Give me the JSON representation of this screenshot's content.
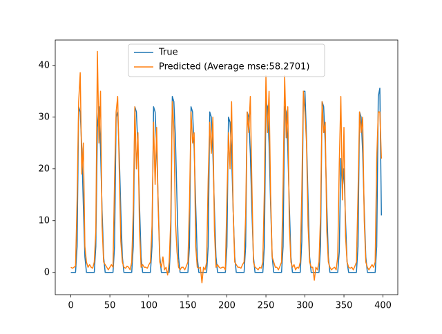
{
  "chart_data": {
    "type": "line",
    "x": [
      0,
      2,
      4,
      6,
      8,
      10,
      12,
      14,
      16,
      18,
      20,
      22,
      24,
      26,
      28,
      30,
      32,
      34,
      36,
      38,
      40,
      42,
      44,
      46,
      48,
      50,
      52,
      54,
      56,
      58,
      60,
      62,
      64,
      66,
      68,
      70,
      72,
      74,
      76,
      78,
      80,
      82,
      84,
      86,
      88,
      90,
      92,
      94,
      96,
      98,
      100,
      102,
      104,
      106,
      108,
      110,
      112,
      114,
      116,
      118,
      120,
      122,
      124,
      126,
      128,
      130,
      132,
      134,
      136,
      138,
      140,
      142,
      144,
      146,
      148,
      150,
      152,
      154,
      156,
      158,
      160,
      162,
      164,
      166,
      168,
      170,
      172,
      174,
      176,
      178,
      180,
      182,
      184,
      186,
      188,
      190,
      192,
      194,
      196,
      198,
      200,
      202,
      204,
      206,
      208,
      210,
      212,
      214,
      216,
      218,
      220,
      222,
      224,
      226,
      228,
      230,
      232,
      234,
      236,
      238,
      240,
      242,
      244,
      246,
      248,
      250,
      252,
      254,
      256,
      258,
      260,
      262,
      264,
      266,
      268,
      270,
      272,
      274,
      276,
      278,
      280,
      282,
      284,
      286,
      288,
      290,
      292,
      294,
      296,
      298,
      300,
      302,
      304,
      306,
      308,
      310,
      312,
      314,
      316,
      318,
      320,
      322,
      324,
      326,
      328,
      330,
      332,
      334,
      336,
      338,
      340,
      342,
      344,
      346,
      348,
      350,
      352,
      354,
      356,
      358,
      360,
      362,
      364,
      366,
      368,
      370,
      372,
      374,
      376,
      378,
      380,
      382,
      384,
      386,
      388,
      390,
      392,
      394,
      396,
      398
    ],
    "series": [
      {
        "name": "True",
        "color": "#1f77b4",
        "values": [
          0,
          0,
          0,
          0,
          5,
          32,
          31,
          24,
          13,
          3,
          0,
          0,
          0,
          0,
          0,
          0,
          5,
          28,
          32,
          24,
          12,
          3,
          0,
          0,
          0,
          0,
          0,
          0,
          5,
          30,
          31,
          23,
          12,
          3,
          0,
          0,
          0,
          0,
          0,
          0,
          5,
          32,
          31,
          24,
          13,
          3,
          0,
          0,
          0,
          0,
          0,
          0,
          5,
          32,
          31,
          24,
          13,
          3,
          0,
          0,
          0,
          0,
          0,
          0,
          6,
          34,
          33,
          26,
          14,
          3,
          0,
          0,
          0,
          0,
          0,
          0,
          5,
          32,
          31,
          24,
          13,
          3,
          0,
          0,
          0,
          0,
          0,
          0,
          5,
          31,
          30,
          23,
          12,
          3,
          0,
          0,
          0,
          0,
          0,
          0,
          5,
          30,
          29,
          23,
          12,
          3,
          0,
          0,
          0,
          0,
          0,
          0,
          5,
          31,
          30,
          23,
          12,
          3,
          0,
          0,
          0,
          0,
          0,
          0,
          5,
          33,
          32,
          25,
          13,
          3,
          0,
          0,
          0,
          0,
          0,
          0,
          5,
          32,
          31,
          24,
          13,
          3,
          0,
          0,
          0,
          0,
          0,
          0,
          6,
          35,
          35,
          26,
          14,
          3,
          0,
          0,
          0,
          0,
          0,
          0,
          5,
          33,
          32,
          25,
          13,
          3,
          0,
          0,
          0,
          0,
          0,
          0,
          4,
          22,
          16,
          20,
          10,
          2,
          0,
          0,
          0,
          0,
          0,
          0,
          5,
          31,
          30,
          23,
          12,
          3,
          0,
          0,
          0,
          0,
          0,
          0,
          5,
          34,
          35.6,
          11
        ]
      },
      {
        "name": "Predicted (Average mse:58.2701)",
        "color": "#ff7f0e",
        "values": [
          1,
          0.8,
          1,
          1.2,
          14,
          33,
          38.6,
          19,
          25,
          5,
          2,
          1,
          1.5,
          1,
          0.8,
          2,
          8,
          42.7,
          25,
          35,
          9,
          2,
          1.5,
          1,
          0.5,
          1,
          1.5,
          1,
          18,
          31,
          34,
          20,
          6,
          2,
          1,
          0.8,
          1.2,
          1,
          0.5,
          2,
          12,
          32,
          20,
          27,
          8,
          1,
          1.5,
          1,
          1,
          0.8,
          1.5,
          2,
          9,
          29,
          17,
          28,
          12,
          2,
          1,
          3,
          0.5,
          1,
          -0.5,
          2,
          10,
          33,
          28,
          10,
          4,
          1,
          0.5,
          1,
          1,
          0.5,
          1.2,
          2,
          13,
          31,
          25,
          27,
          5,
          1,
          0.8,
          1,
          -2,
          1,
          0.5,
          2,
          18,
          29,
          23,
          30,
          8,
          1,
          1.5,
          1,
          0.8,
          1,
          1,
          0.5,
          14,
          27,
          20,
          33,
          12,
          2,
          1.5,
          1,
          1,
          0.8,
          1.5,
          2,
          11,
          31,
          27,
          34,
          17,
          2,
          1,
          0.8,
          0.5,
          1,
          0.8,
          2,
          16,
          38,
          27,
          35,
          15,
          3,
          2,
          1,
          1,
          0.5,
          1.2,
          2,
          17,
          38,
          26,
          32,
          9,
          2,
          1,
          1.5,
          0.5,
          1,
          0.8,
          2,
          16,
          35,
          31,
          25,
          9,
          2,
          1,
          1,
          -1.5,
          1,
          0.5,
          2,
          11,
          33,
          27,
          29,
          8,
          2,
          1,
          0.5,
          0.8,
          1,
          0.5,
          3,
          21,
          34,
          14,
          28,
          7,
          2,
          1,
          0.8,
          1,
          0.5,
          1.2,
          2,
          15,
          31,
          27,
          30,
          10,
          2,
          1,
          0.5,
          1,
          1.5,
          1,
          2,
          22,
          31,
          31,
          22
        ]
      }
    ],
    "xlim": [
      -20,
      419
    ],
    "ylim": [
      -4.3,
      44.9
    ],
    "xticks": [
      0,
      50,
      100,
      150,
      200,
      250,
      300,
      350,
      400
    ],
    "yticks": [
      0,
      10,
      20,
      30,
      40
    ],
    "legend": "upper center",
    "grid": false
  }
}
